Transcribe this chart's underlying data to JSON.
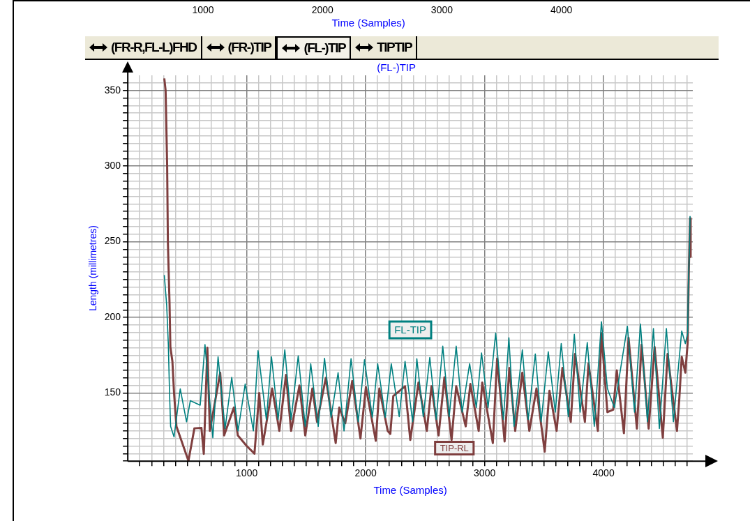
{
  "chart_data": {
    "type": "line",
    "title": "(FL-)TIP",
    "xlabel": "Time (Samples)",
    "ylabel": "Length (millimetres)",
    "x2label": "Time (Samples)",
    "annotations": [
      "(FR-R,FL-L)FHD",
      "(FR-)TIP",
      "(FL-)TIP",
      "TIPTIP"
    ],
    "xlim": [
      0,
      4750
    ],
    "ylim": [
      105,
      360
    ],
    "x2lim": [
      370,
      5100
    ],
    "x2ticks": [
      1000,
      2000,
      3000,
      4000
    ],
    "xticks": [
      {
        "value": 100,
        "label": null
      },
      {
        "value": 200,
        "label": null
      },
      {
        "value": 300,
        "label": null
      },
      {
        "value": 400,
        "label": null
      },
      {
        "value": 500,
        "label": null
      },
      {
        "value": 600,
        "label": null
      },
      {
        "value": 700,
        "label": null
      },
      {
        "value": 800,
        "label": null
      },
      {
        "value": 900,
        "label": null
      },
      1000,
      {
        "value": 1100,
        "label": null
      },
      {
        "value": 1200,
        "label": null
      },
      {
        "value": 1300,
        "label": null
      },
      {
        "value": 1400,
        "label": null
      },
      {
        "value": 1500,
        "label": null
      },
      {
        "value": 1600,
        "label": null
      },
      {
        "value": 1700,
        "label": null
      },
      {
        "value": 1800,
        "label": null
      },
      {
        "value": 1900,
        "label": null
      },
      2000,
      {
        "value": 2100,
        "label": null
      },
      {
        "value": 2200,
        "label": null
      },
      {
        "value": 2300,
        "label": null
      },
      {
        "value": 2400,
        "label": null
      },
      {
        "value": 2500,
        "label": null
      },
      {
        "value": 2600,
        "label": null
      },
      {
        "value": 2700,
        "label": null
      },
      {
        "value": 2800,
        "label": null
      },
      {
        "value": 2900,
        "label": null
      },
      3000,
      {
        "value": 3100,
        "label": null
      },
      {
        "value": 3200,
        "label": null
      },
      {
        "value": 3300,
        "label": null
      },
      {
        "value": 3400,
        "label": null
      },
      {
        "value": 3500,
        "label": null
      },
      {
        "value": 3600,
        "label": null
      },
      {
        "value": 3700,
        "label": null
      },
      {
        "value": 3800,
        "label": null
      },
      {
        "value": 3900,
        "label": null
      },
      4000,
      {
        "value": 4100,
        "label": null
      },
      {
        "value": 4200,
        "label": null
      },
      {
        "value": 4300,
        "label": null
      },
      {
        "value": 4400,
        "label": null
      },
      {
        "value": 4500,
        "label": null
      },
      {
        "value": 4600,
        "label": null
      },
      {
        "value": 4700,
        "label": null
      }
    ],
    "yticks": [
      {
        "value": 105,
        "label": null
      },
      {
        "value": 110,
        "label": null
      },
      {
        "value": 115,
        "label": null
      },
      {
        "value": 120,
        "label": null
      },
      {
        "value": 125,
        "label": null
      },
      {
        "value": 130,
        "label": null
      },
      {
        "value": 135,
        "label": null
      },
      {
        "value": 140,
        "label": null
      },
      {
        "value": 145,
        "label": null
      },
      150,
      {
        "value": 155,
        "label": null
      },
      {
        "value": 160,
        "label": null
      },
      {
        "value": 165,
        "label": null
      },
      {
        "value": 170,
        "label": null
      },
      {
        "value": 175,
        "label": null
      },
      {
        "value": 180,
        "label": null
      },
      {
        "value": 185,
        "label": null
      },
      {
        "value": 190,
        "label": null
      },
      {
        "value": 195,
        "label": null
      },
      200,
      {
        "value": 205,
        "label": null
      },
      {
        "value": 210,
        "label": null
      },
      {
        "value": 215,
        "label": null
      },
      {
        "value": 220,
        "label": null
      },
      {
        "value": 225,
        "label": null
      },
      {
        "value": 230,
        "label": null
      },
      {
        "value": 235,
        "label": null
      },
      {
        "value": 240,
        "label": null
      },
      {
        "value": 245,
        "label": null
      },
      250,
      {
        "value": 255,
        "label": null
      },
      {
        "value": 260,
        "label": null
      },
      {
        "value": 265,
        "label": null
      },
      {
        "value": 270,
        "label": null
      },
      {
        "value": 275,
        "label": null
      },
      {
        "value": 280,
        "label": null
      },
      {
        "value": 285,
        "label": null
      },
      {
        "value": 290,
        "label": null
      },
      {
        "value": 295,
        "label": null
      },
      300,
      {
        "value": 305,
        "label": null
      },
      {
        "value": 310,
        "label": null
      },
      {
        "value": 315,
        "label": null
      },
      {
        "value": 320,
        "label": null
      },
      {
        "value": 325,
        "label": null
      },
      {
        "value": 330,
        "label": null
      },
      {
        "value": 335,
        "label": null
      },
      {
        "value": 340,
        "label": null
      },
      {
        "value": 345,
        "label": null
      },
      350,
      {
        "value": 355,
        "label": null
      }
    ],
    "grid": true,
    "legend": false,
    "marker": "none",
    "line_style": "solid",
    "series": [
      {
        "name": "FL-TIP",
        "color": "#008080",
        "x": [
          307,
          327,
          341,
          351,
          360,
          389,
          441,
          494,
          526,
          609,
          649,
          715,
          759,
          818,
          874,
          927,
          987,
          1056,
          1095,
          1165,
          1208,
          1264,
          1320,
          1373,
          1433,
          1492,
          1538,
          1601,
          1654,
          1709,
          1768,
          1818,
          1877,
          1937,
          1990,
          2056,
          2101,
          2165,
          2215,
          2282,
          2331,
          2395,
          2430,
          2484,
          2539,
          2593,
          2648,
          2702,
          2761,
          2811,
          2874,
          2930,
          2974,
          3029,
          3093,
          3158,
          3204,
          3247,
          3317,
          3366,
          3426,
          3475,
          3535,
          3594,
          3644,
          3704,
          3754,
          3803,
          3863,
          3922,
          3982,
          4032,
          4091,
          4200,
          4260,
          4310,
          4369,
          4419,
          4469,
          4528,
          4587,
          4637,
          4657,
          4687,
          4707,
          4712,
          4722,
          4727
        ],
        "values": [
          228,
          208,
          182,
          150,
          128,
          121,
          152.8,
          131,
          145,
          142,
          182,
          120.5,
          174,
          126.5,
          160.4,
          125,
          156,
          125,
          178,
          132.5,
          174,
          132.5,
          178.6,
          132.5,
          174.6,
          128,
          169.4,
          128,
          173,
          134,
          163.5,
          125,
          172.7,
          131,
          172,
          134,
          169.4,
          134,
          169.4,
          134.4,
          171,
          131,
          172.7,
          134.4,
          173.5,
          132.5,
          181,
          134.4,
          181,
          137.4,
          169.4,
          140.4,
          176.5,
          140.4,
          189.6,
          132.5,
          186.5,
          128,
          178.6,
          132.5,
          175.8,
          131,
          177.3,
          137.4,
          182.7,
          134.4,
          188.8,
          137.4,
          183.4,
          128,
          197.2,
          153,
          140.4,
          194.2,
          137.4,
          195.7,
          131,
          192.7,
          126.5,
          192.7,
          131,
          174,
          191,
          182.7,
          189.6,
          220,
          244.8,
          267
        ]
      },
      {
        "name": "TIP-RL",
        "color": "#7f3f3f",
        "x": [
          307,
          318,
          331,
          337,
          351,
          358,
          375,
          389,
          409,
          510,
          560,
          619,
          639,
          669,
          690,
          777,
          810,
          892,
          925,
          1000,
          1065,
          1105,
          1135,
          1214,
          1274,
          1330,
          1373,
          1443,
          1492,
          1552,
          1591,
          1665,
          1748,
          1778,
          1828,
          1887,
          1956,
          2002,
          2085,
          2115,
          2185,
          2207,
          2232,
          2331,
          2375,
          2444,
          2514,
          2553,
          2613,
          2662,
          2722,
          2761,
          2841,
          2880,
          2950,
          2980,
          3069,
          3105,
          3168,
          3208,
          3257,
          3317,
          3376,
          3436,
          3505,
          3545,
          3605,
          3654,
          3724,
          3760,
          3843,
          3873,
          3952,
          3982,
          4032,
          4081,
          4111,
          4171,
          4210,
          4280,
          4320,
          4379,
          4429,
          4498,
          4538,
          4617,
          4637,
          4657,
          4687,
          4707,
          4717,
          4727,
          4732
        ],
        "values": [
          358,
          350,
          300,
          250,
          209.5,
          180.5,
          171,
          150,
          128,
          105.2,
          126.7,
          127,
          109.8,
          180,
          125,
          163.5,
          122,
          140.5,
          122,
          115,
          110,
          150,
          116,
          153,
          125,
          162,
          125,
          155,
          122,
          153,
          131,
          160,
          117,
          140.5,
          130,
          158,
          120,
          154,
          118.5,
          153,
          125,
          123,
          148,
          154.5,
          119,
          157,
          125,
          154.5,
          122,
          160.4,
          119,
          154.5,
          128,
          156,
          125,
          157,
          117,
          172.7,
          118,
          166.6,
          125,
          163.5,
          125,
          153,
          111.3,
          151.5,
          125,
          166.6,
          131,
          175.8,
          131,
          169.6,
          125,
          189.6,
          137.4,
          139,
          165,
          123.5,
          186.5,
          126.5,
          182,
          126.5,
          180.5,
          120.5,
          175.8,
          125,
          146.6,
          174,
          163.5,
          183.4,
          232.5,
          265.5,
          240
        ]
      }
    ]
  }
}
